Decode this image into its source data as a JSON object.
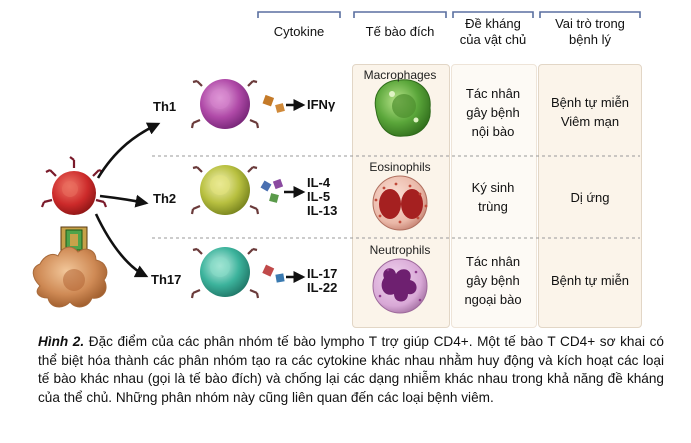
{
  "headers": {
    "cytokine": "Cytokine",
    "target_cell": "Tế bào đích",
    "host_defense": "Đề kháng\ncủa vật chủ",
    "disease_role": "Vai trò trong\nbệnh lý"
  },
  "rows": [
    {
      "subset": "Th1",
      "cytokines": "IFNγ",
      "target_cell": "Macrophages",
      "host_defense": "Tác nhân\ngây bệnh\nnội bào",
      "disease_role": "Bệnh tự miễn\nViêm mạn"
    },
    {
      "subset": "Th2",
      "cytokines": "IL-4\nIL-5\nIL-13",
      "target_cell": "Eosinophils",
      "host_defense": "Ký sinh\ntrùng",
      "disease_role": "Dị ứng"
    },
    {
      "subset": "Th17",
      "cytokines": "IL-17\nIL-22",
      "target_cell": "Neutrophils",
      "host_defense": "Tác nhân\ngây bệnh\nngoại bào",
      "disease_role": "Bệnh tự miễn"
    }
  ],
  "caption": {
    "title": "Hình 2.",
    "text": " Đặc điểm của các phân nhóm tế bào lympho T trợ giúp CD4+. Một tế bào T CD4+ sơ khai có thể biệt hóa thành các phân nhóm tạo ra các cytokine khác nhau nhằm huy động và kích hoạt các loại tế bào khác nhau (gọi là tế bào đích) và chống lại các dạng nhiễm khác nhau trong khả năng đề kháng của thể chủ. Những phân nhóm này cũng liên quan đến các loại bệnh viêm."
  },
  "colors": {
    "panel_bg": "#fbf4ea",
    "panel_border": "#e2d6c6",
    "header_bracket": "#5a6fa0",
    "naive_t_cell": "#cc2a2a",
    "dendritic_cell": "#c98650",
    "th1_cell": "#b04aa8",
    "th2_cell": "#b8c040",
    "th17_cell": "#3cb39c",
    "macrophage": "#5aa63a",
    "eosinophil": "#c0392b",
    "neutrophil": "#8e3b8c"
  }
}
